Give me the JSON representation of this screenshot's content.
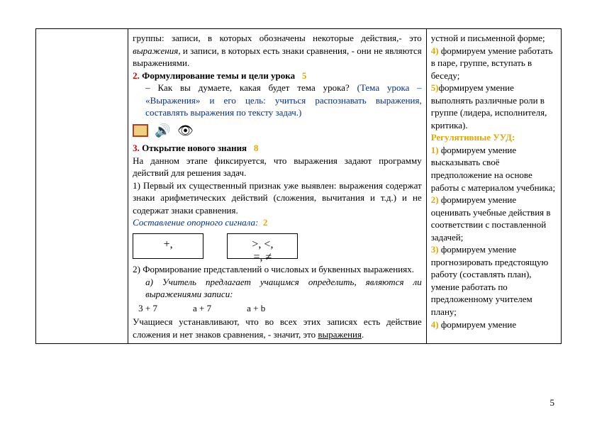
{
  "colors": {
    "text": "#000000",
    "blue": "#002e8a",
    "yellow": "#e0a800",
    "red": "#cc0000",
    "background": "#ffffff",
    "border": "#000000"
  },
  "middle": {
    "p1a": "группы: записи, в которых обозначены некоторые действия,- это ",
    "p1b": "выражения",
    "p1c": ", и записи, в которых есть знаки сравнения, - они не являются выражениями.",
    "s2num": "2. ",
    "s2title": "Формулирование темы и цели урока",
    "s2time": "5",
    "s2q": "– Как вы думаете, какая будет тема урока? ",
    "s2ans": "(Тема урока – «Выражения» и его цель: учиться распознавать выражения, составлять выражения по тексту задач.)",
    "s3num": "3. ",
    "s3title": "Открытие нового знания",
    "s3time": "8",
    "s3p1": "На данном этапе фиксируется, что выражения задают программу действий для решения задач.",
    "item1": "1) Первый их существенный признак уже выявлен: выражения содержат знаки арифметических действий (сложения, вычитания и т.д.) и не содержат знаки сравнения.",
    "signal_label": "Составление опорного сигнала:",
    "signal_time": "2",
    "box1": "+,",
    "box2_line1": ">, <,",
    "box2_line2": "=, ≠",
    "item2": "2) Формирование представлений о числовых и буквенных выражениях.",
    "sub_a": "а) Учитель предлагает учащимся определить, являются ли выражениями записи:",
    "ex1": "3 + 7",
    "ex2": "а + 7",
    "ex3": "а + b",
    "concl_a": "Учащиеся устанавливают, что во всех этих записях есть действие сложения и нет знаков сравнения, - значит, это ",
    "concl_b": "выражения",
    "concl_c": "."
  },
  "right": {
    "r1": "устной и письменной форме;",
    "n4": "4)",
    "r2": " формируем умение работать в паре, группе, вступать в беседу;",
    "n5": "5)",
    "r3": "формируем умение выполнять различные роли в группе (лидера, исполнителя, критика).",
    "reg": "Регулятивные УУД:",
    "rn1": "1)",
    "rr1": " формируем умение высказывать своё предположение на основе работы с материалом учебника;",
    "rn2": "2)",
    "rr2": " формируем умение оценивать учебные действия в соответствии с поставленной задачей;",
    "rn3": "3)",
    "rr3": " формируем умение прогнозировать предстоящую работу (составлять план), умение работать по предложенному учителем плану;",
    "rn4": "4)",
    "rr4": " формируем умение"
  },
  "pagenum": "5"
}
